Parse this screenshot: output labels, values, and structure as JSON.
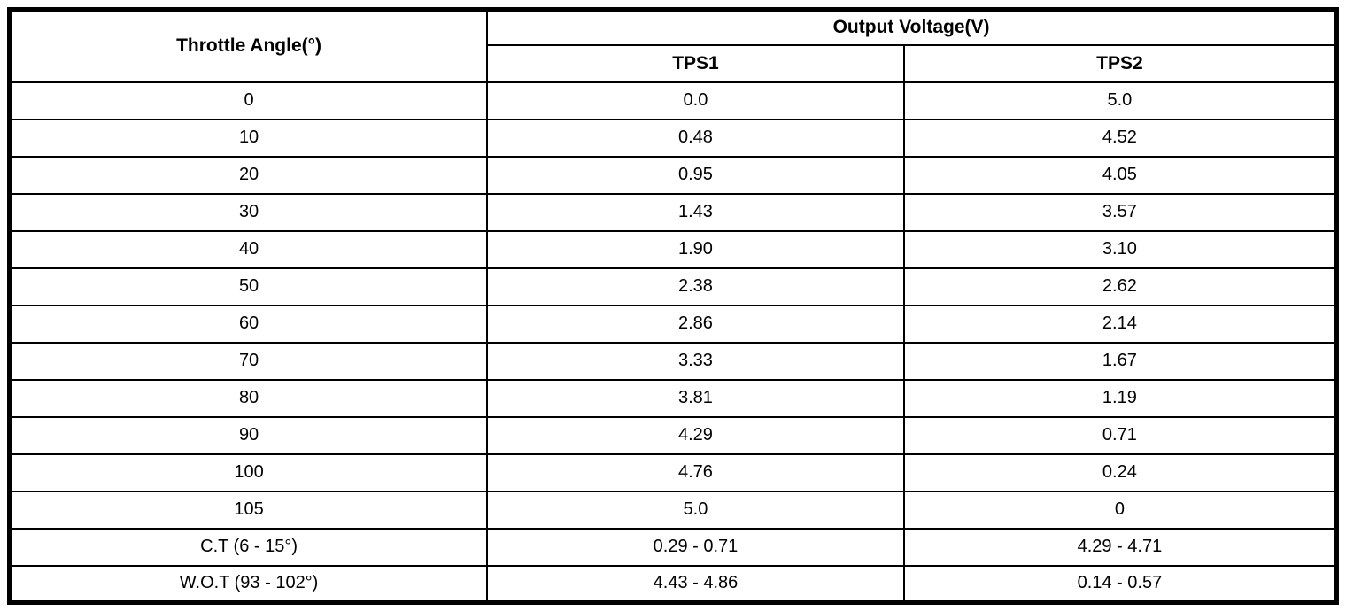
{
  "colors": {
    "background": "#ffffff",
    "border": "#000000",
    "text": "#000000"
  },
  "table": {
    "angle_header": "Throttle Angle(°)",
    "voltage_group_header": "Output Voltage(V)",
    "sensor_headers": [
      "TPS1",
      "TPS2"
    ],
    "rows": [
      [
        "0",
        "0.0",
        "5.0"
      ],
      [
        "10",
        "0.48",
        "4.52"
      ],
      [
        "20",
        "0.95",
        "4.05"
      ],
      [
        "30",
        "1.43",
        "3.57"
      ],
      [
        "40",
        "1.90",
        "3.10"
      ],
      [
        "50",
        "2.38",
        "2.62"
      ],
      [
        "60",
        "2.86",
        "2.14"
      ],
      [
        "70",
        "3.33",
        "1.67"
      ],
      [
        "80",
        "3.81",
        "1.19"
      ],
      [
        "90",
        "4.29",
        "0.71"
      ],
      [
        "100",
        "4.76",
        "0.24"
      ],
      [
        "105",
        "5.0",
        "0"
      ],
      [
        "C.T (6 - 15°)",
        "0.29 - 0.71",
        "4.29 - 4.71"
      ],
      [
        "W.O.T (93 - 102°)",
        "4.43 - 4.86",
        "0.14 - 0.57"
      ]
    ]
  }
}
